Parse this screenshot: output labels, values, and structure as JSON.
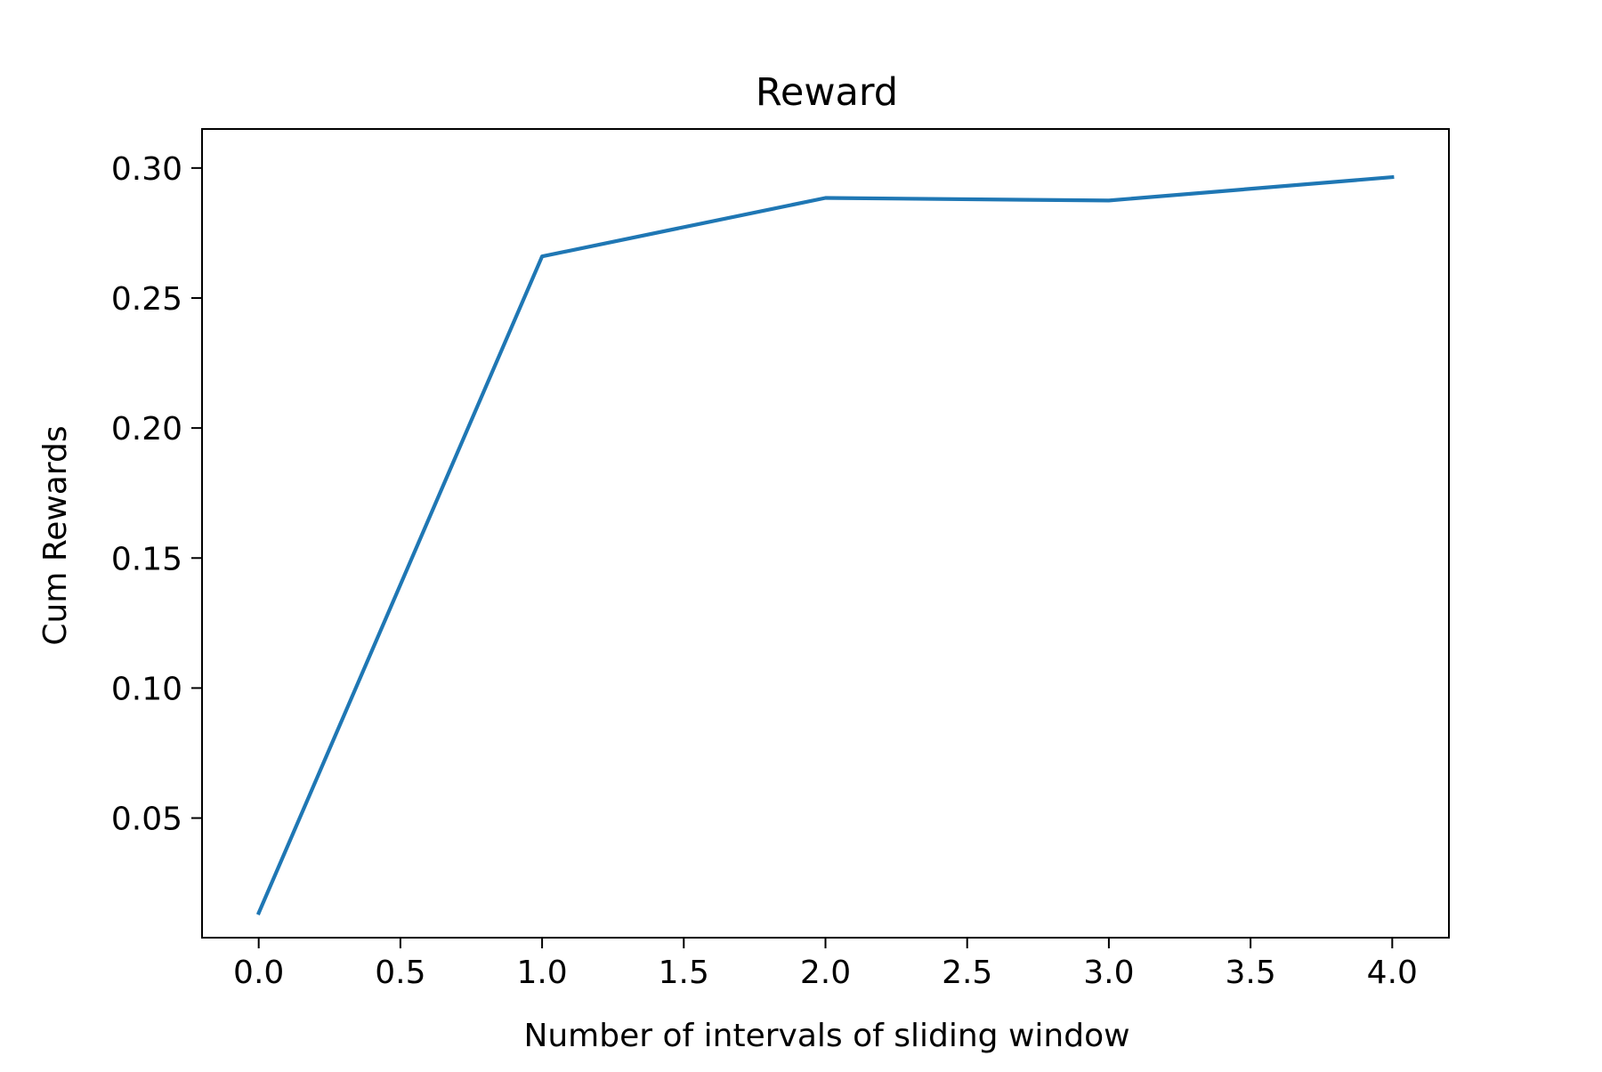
{
  "chart_data": {
    "type": "line",
    "title": "Reward",
    "xlabel": "Number of intervals of sliding window",
    "ylabel": "Cum Rewards",
    "xlim": [
      -0.2,
      4.2
    ],
    "ylim": [
      0.004,
      0.315
    ],
    "x_ticks": [
      0.0,
      0.5,
      1.0,
      1.5,
      2.0,
      2.5,
      3.0,
      3.5,
      4.0
    ],
    "x_tick_labels": [
      "0.0",
      "0.5",
      "1.0",
      "1.5",
      "2.0",
      "2.5",
      "3.0",
      "3.5",
      "4.0"
    ],
    "y_ticks": [
      0.05,
      0.1,
      0.15,
      0.2,
      0.25,
      0.3
    ],
    "y_tick_labels": [
      "0.05",
      "0.10",
      "0.15",
      "0.20",
      "0.25",
      "0.30"
    ],
    "grid": false,
    "series": [
      {
        "x": [
          0,
          1,
          2,
          3,
          4
        ],
        "values": [
          0.0135,
          0.266,
          0.2885,
          0.2875,
          0.2965
        ],
        "color": "#1f77b4"
      }
    ]
  }
}
